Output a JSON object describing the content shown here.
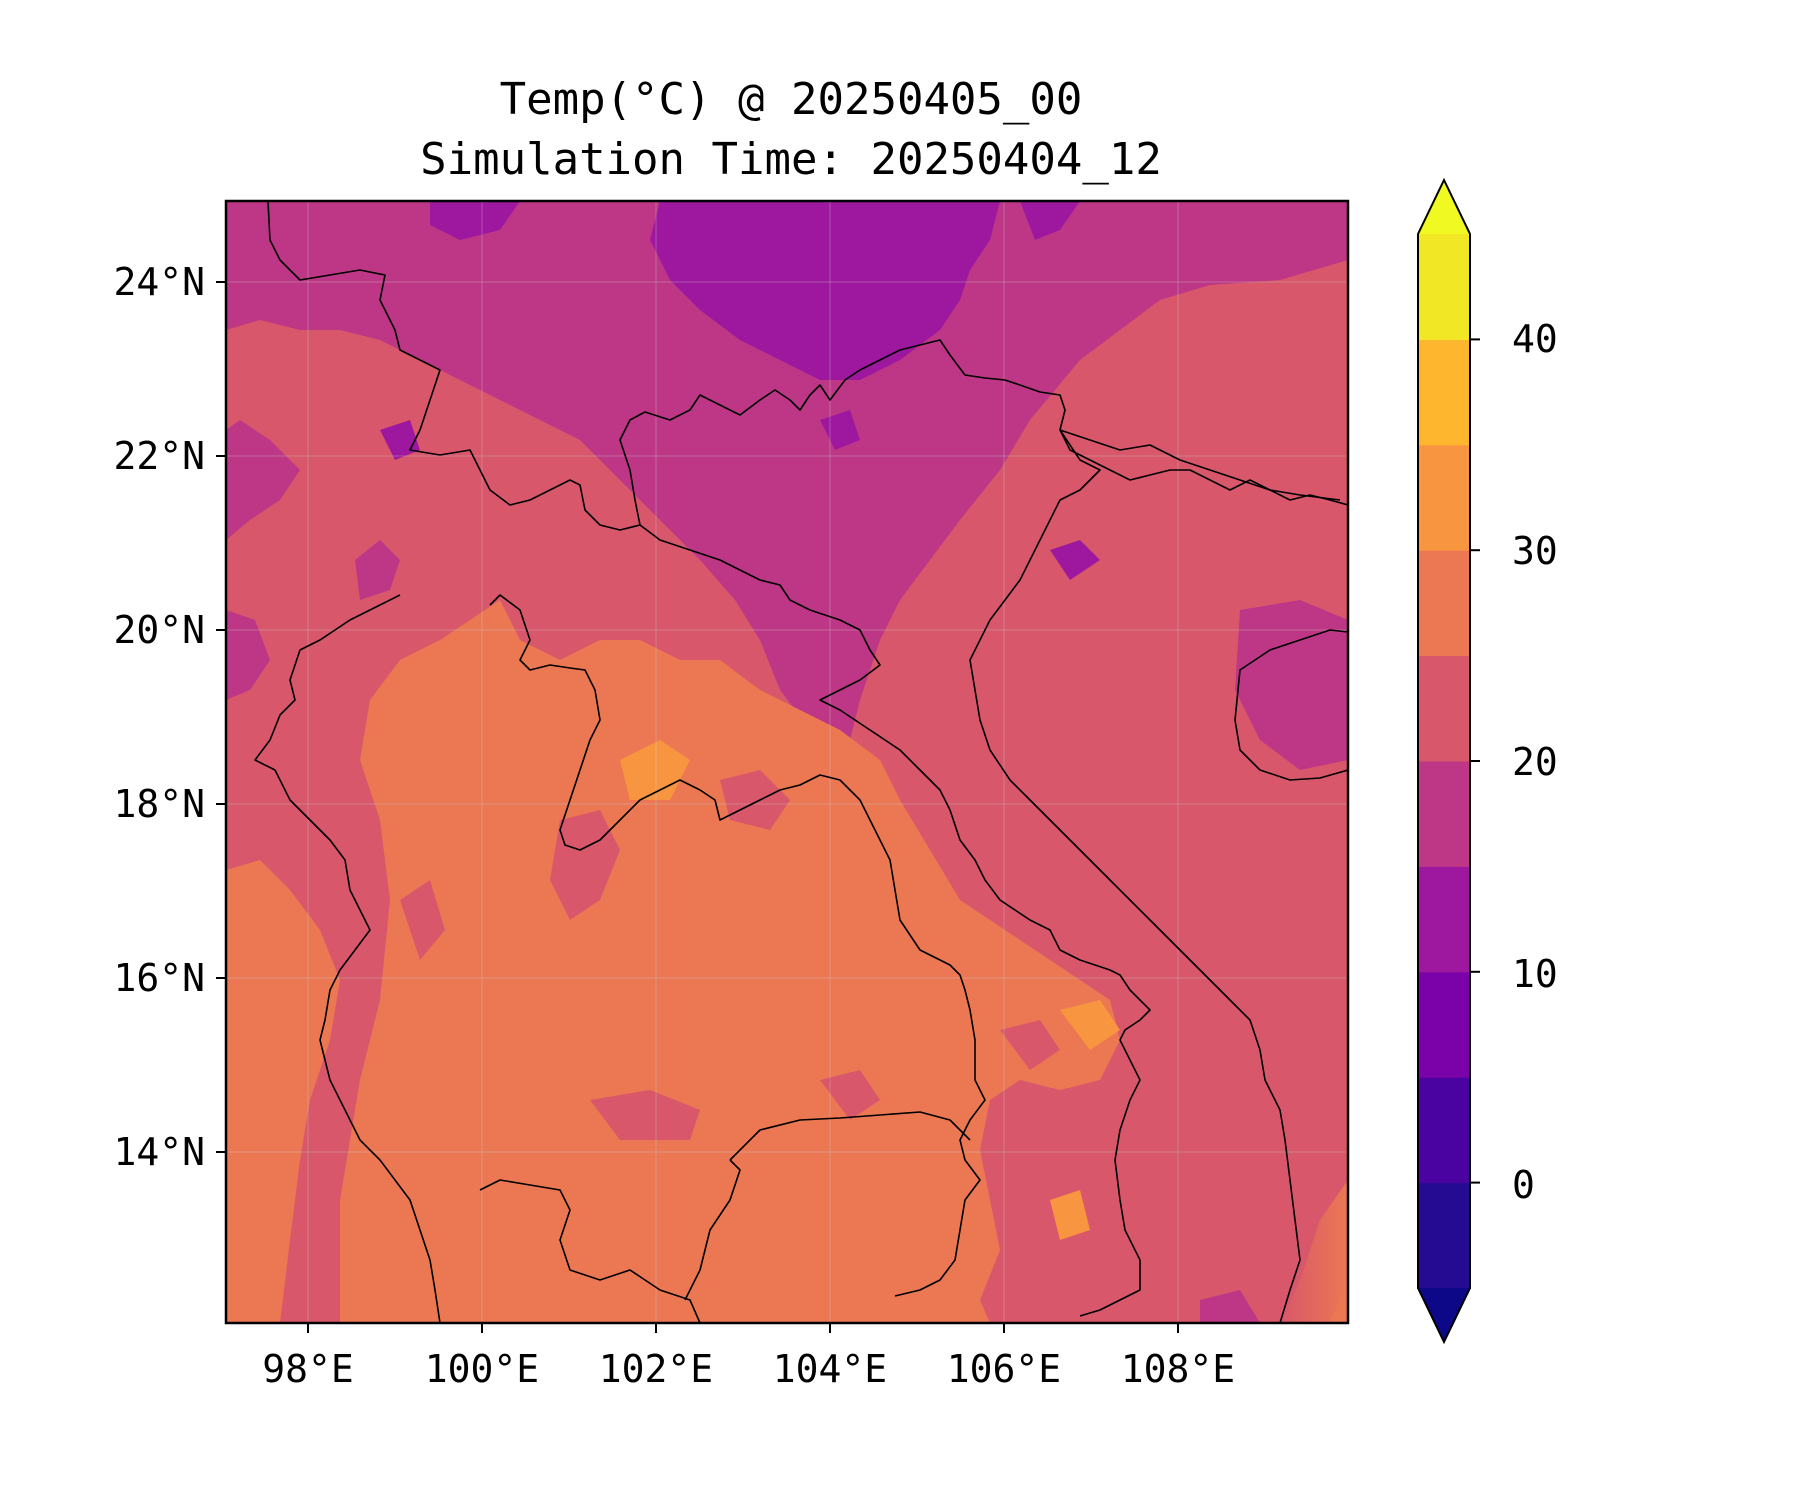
{
  "title": {
    "line1": "Temp(°C) @ 20250405_00",
    "line2": "Simulation Time: 20250404_12"
  },
  "map": {
    "lon_range": [
      97.0,
      109.9
    ],
    "lat_range": [
      12.1,
      25.0
    ],
    "lon_ticks": [
      "98°E",
      "100°E",
      "102°E",
      "104°E",
      "106°E",
      "108°E"
    ],
    "lat_ticks": [
      "24°N",
      "22°N",
      "20°N",
      "18°N",
      "16°N",
      "14°N"
    ],
    "gridlines": true,
    "coastlines_and_borders": true
  },
  "colorbar": {
    "orientation": "vertical",
    "extend": "both",
    "levels": [
      -5,
      0,
      5,
      10,
      15,
      20,
      25,
      30,
      35,
      40,
      45
    ],
    "tick_labels": [
      "0",
      "10",
      "20",
      "30",
      "40"
    ],
    "tick_values": [
      0,
      10,
      20,
      30,
      40
    ],
    "colors": [
      "#250b92",
      "#4a02a1",
      "#7a02a8",
      "#9d189e",
      "#bd3786",
      "#d8576b",
      "#ec7853",
      "#f89540",
      "#fdb62e",
      "#f2e725"
    ],
    "under_color": "#0d0887",
    "over_color": "#f0f921"
  },
  "field_colors": {
    "cold": "#9d189e",
    "cool": "#bd3786",
    "mild": "#d8576b",
    "warm": "#ec7853",
    "hot": "#f89540"
  }
}
